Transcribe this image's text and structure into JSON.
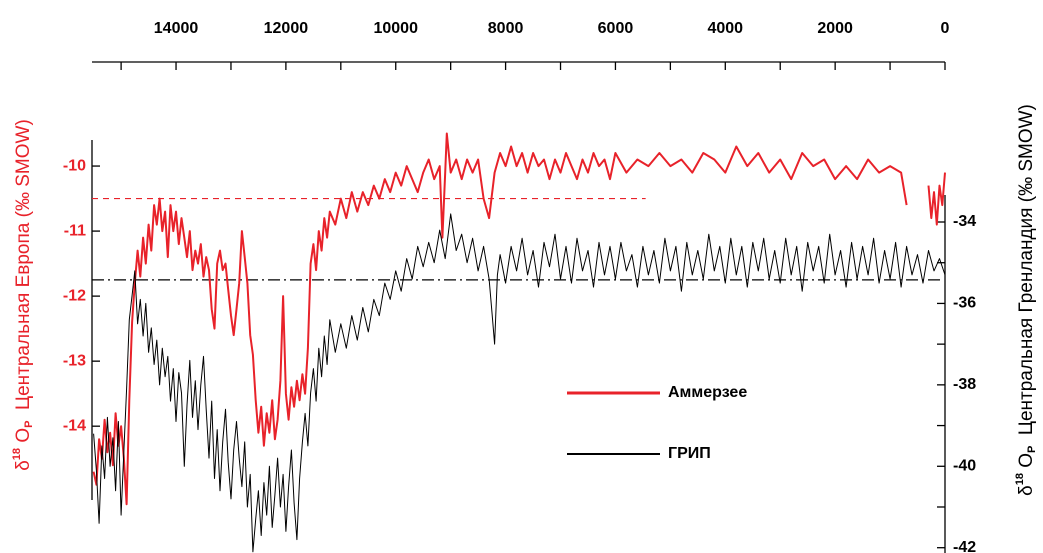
{
  "chart_data": {
    "type": "line",
    "ylabel": [
      "δ",
      "18",
      " O",
      "P",
      "  Центральная Европа (‰ SMOW)"
    ],
    "y2label": [
      "δ",
      "18",
      " O",
      "P",
      "  Центральная Гренландия (‰ SMOW)"
    ],
    "xlim": [
      15530,
      0
    ],
    "xticks": [
      14000,
      12000,
      10000,
      8000,
      6000,
      4000,
      2000,
      0
    ],
    "xminorticks": [
      15000,
      13000,
      11000,
      9000,
      7000,
      5000,
      3000,
      1000
    ],
    "ylim": [
      -15.95,
      -8.4
    ],
    "yticks": [
      -10,
      -11,
      -12,
      -13,
      -14
    ],
    "y2lim": [
      -42.13,
      -30.07
    ],
    "y2ticks": [
      -34,
      -36,
      -38,
      -40,
      -42
    ],
    "y2minorticks": [
      -35,
      -37,
      -39,
      -41
    ],
    "legend": "right",
    "reference_lines": [
      {
        "axis": "y",
        "value": -10.5,
        "x": [
          15530,
          5450
        ],
        "color": "#e8222a",
        "dash": "dashed"
      },
      {
        "axis": "y",
        "value": -11.75,
        "x": [
          15530,
          90
        ],
        "color": "#000000",
        "dash": "dashdot"
      }
    ],
    "series": [
      {
        "name": "Аммерзее",
        "color": "#e8222a",
        "axis": "y",
        "width": 2,
        "x": [
          15500,
          15450,
          15400,
          15350,
          15300,
          15250,
          15200,
          15150,
          15100,
          15050,
          15000,
          14950,
          14900,
          14850,
          14800,
          14750,
          14700,
          14650,
          14600,
          14550,
          14500,
          14450,
          14400,
          14350,
          14300,
          14250,
          14200,
          14150,
          14100,
          14050,
          14000,
          13950,
          13900,
          13850,
          13800,
          13750,
          13700,
          13650,
          13600,
          13550,
          13500,
          13450,
          13400,
          13350,
          13300,
          13250,
          13200,
          13150,
          13100,
          13050,
          13000,
          12950,
          12900,
          12850,
          12800,
          12750,
          12700,
          12650,
          12600,
          12550,
          12500,
          12450,
          12400,
          12350,
          12300,
          12250,
          12200,
          12150,
          12100,
          12050,
          12000,
          11950,
          11900,
          11850,
          11800,
          11750,
          11700,
          11650,
          11600,
          11550,
          11500,
          11450,
          11400,
          11350,
          11300,
          11250,
          11200,
          11100,
          11000,
          10900,
          10800,
          10700,
          10600,
          10500,
          10400,
          10300,
          10200,
          10100,
          10000,
          9900,
          9800,
          9700,
          9600,
          9500,
          9400,
          9300,
          9200,
          9150,
          9100,
          9070,
          9000,
          8900,
          8800,
          8700,
          8600,
          8500,
          8400,
          8300,
          8200,
          8100,
          8000,
          7900,
          7800,
          7700,
          7600,
          7500,
          7400,
          7300,
          7200,
          7100,
          7000,
          6900,
          6800,
          6700,
          6600,
          6500,
          6400,
          6300,
          6200,
          6100,
          6000,
          5800,
          5600,
          5400,
          5200,
          5000,
          4800,
          4600,
          4400,
          4200,
          4000,
          3800,
          3600,
          3400,
          3200,
          3000,
          2800,
          2600,
          2400,
          2200,
          2000,
          1800,
          1600,
          1400,
          1200,
          1000,
          800,
          700,
          600,
          300,
          250,
          200,
          150,
          100,
          50,
          0
        ],
        "values": [
          -14.7,
          -14.9,
          -14.2,
          -14.5,
          -13.9,
          -14.4,
          -14.1,
          -14.6,
          -13.8,
          -14.3,
          -14.0,
          -14.5,
          -15.2,
          -13.6,
          -12.4,
          -11.8,
          -11.3,
          -11.7,
          -11.1,
          -11.5,
          -10.9,
          -11.3,
          -10.6,
          -10.9,
          -10.5,
          -11.0,
          -10.7,
          -11.4,
          -10.6,
          -11.0,
          -10.7,
          -11.2,
          -10.8,
          -11.1,
          -11.4,
          -11.0,
          -11.6,
          -11.3,
          -11.5,
          -11.2,
          -11.7,
          -11.4,
          -11.6,
          -12.2,
          -12.5,
          -11.5,
          -11.3,
          -11.6,
          -11.5,
          -11.9,
          -12.3,
          -12.6,
          -12.2,
          -11.8,
          -11.0,
          -11.4,
          -11.8,
          -12.6,
          -12.9,
          -13.6,
          -14.1,
          -13.7,
          -14.3,
          -13.8,
          -14.1,
          -13.6,
          -14.2,
          -13.9,
          -13.3,
          -12.0,
          -13.5,
          -13.9,
          -13.4,
          -13.7,
          -13.3,
          -13.6,
          -13.2,
          -13.5,
          -12.8,
          -11.5,
          -11.2,
          -11.6,
          -11.0,
          -11.3,
          -10.8,
          -11.1,
          -10.7,
          -10.9,
          -10.5,
          -10.8,
          -10.4,
          -10.7,
          -10.4,
          -10.6,
          -10.3,
          -10.5,
          -10.2,
          -10.4,
          -10.1,
          -10.3,
          -10.0,
          -10.2,
          -10.4,
          -10.1,
          -9.9,
          -10.2,
          -10.0,
          -11.1,
          -10.1,
          -9.5,
          -10.1,
          -9.9,
          -10.2,
          -9.9,
          -10.1,
          -9.9,
          -10.5,
          -10.8,
          -10.1,
          -9.8,
          -10.0,
          -9.7,
          -10.0,
          -9.8,
          -10.1,
          -9.8,
          -10.0,
          -9.9,
          -10.2,
          -9.9,
          -10.1,
          -9.8,
          -10.0,
          -10.2,
          -9.9,
          -10.1,
          -9.8,
          -10.0,
          -9.9,
          -10.2,
          -9.8,
          -10.1,
          -9.9,
          -10.0,
          -9.8,
          -10.0,
          -9.9,
          -10.1,
          -9.8,
          -9.9,
          -10.1,
          -9.7,
          -10.0,
          -9.8,
          -10.1,
          -9.9,
          -10.2,
          -9.8,
          -10.0,
          -9.9,
          -10.2,
          -10.0,
          -10.2,
          -9.9,
          -10.1,
          -10.0,
          -10.1,
          -10.6,
          null,
          -10.3,
          -10.8,
          -10.4,
          -10.9,
          -10.3,
          -10.6,
          -10.1
        ]
      },
      {
        "name": "ГРИП",
        "color": "#000000",
        "axis": "y2",
        "width": 1,
        "x": [
          15500,
          15450,
          15400,
          15350,
          15300,
          15250,
          15200,
          15150,
          15100,
          15050,
          15000,
          14950,
          14900,
          14850,
          14800,
          14750,
          14700,
          14650,
          14600,
          14550,
          14500,
          14450,
          14400,
          14350,
          14300,
          14250,
          14200,
          14150,
          14100,
          14050,
          14000,
          13950,
          13900,
          13850,
          13800,
          13750,
          13700,
          13650,
          13600,
          13550,
          13500,
          13450,
          13400,
          13350,
          13300,
          13250,
          13200,
          13150,
          13100,
          13050,
          13000,
          12950,
          12900,
          12850,
          12800,
          12750,
          12700,
          12650,
          12600,
          12550,
          12500,
          12450,
          12400,
          12350,
          12300,
          12250,
          12200,
          12150,
          12100,
          12050,
          12000,
          11950,
          11900,
          11850,
          11800,
          11750,
          11700,
          11650,
          11600,
          11550,
          11500,
          11450,
          11400,
          11350,
          11300,
          11250,
          11200,
          11100,
          11000,
          10900,
          10800,
          10700,
          10600,
          10500,
          10400,
          10300,
          10200,
          10100,
          10000,
          9900,
          9800,
          9700,
          9600,
          9500,
          9400,
          9300,
          9200,
          9100,
          9000,
          8900,
          8800,
          8700,
          8600,
          8500,
          8400,
          8300,
          8250,
          8200,
          8150,
          8100,
          8000,
          7900,
          7800,
          7700,
          7600,
          7500,
          7400,
          7300,
          7200,
          7100,
          7000,
          6900,
          6800,
          6700,
          6600,
          6500,
          6400,
          6300,
          6200,
          6100,
          6000,
          5900,
          5800,
          5700,
          5600,
          5500,
          5400,
          5300,
          5200,
          5100,
          5000,
          4900,
          4800,
          4700,
          4600,
          4500,
          4400,
          4300,
          4200,
          4100,
          4000,
          3900,
          3800,
          3700,
          3600,
          3500,
          3400,
          3300,
          3200,
          3100,
          3000,
          2900,
          2800,
          2700,
          2600,
          2500,
          2400,
          2300,
          2200,
          2100,
          2000,
          1900,
          1800,
          1700,
          1600,
          1500,
          1400,
          1300,
          1200,
          1100,
          1000,
          900,
          800,
          700,
          600,
          500,
          400,
          300,
          200,
          100,
          0
        ],
        "values": [
          -39.2,
          -40.1,
          -41.4,
          -39.5,
          -40.3,
          -38.8,
          -40.0,
          -39.3,
          -40.6,
          -38.9,
          -41.2,
          -39.6,
          -38.1,
          -36.4,
          -35.8,
          -35.2,
          -36.5,
          -35.9,
          -36.8,
          -36.0,
          -37.2,
          -36.6,
          -37.5,
          -36.9,
          -38.0,
          -37.1,
          -37.8,
          -37.3,
          -38.4,
          -37.6,
          -38.9,
          -37.7,
          -38.2,
          -40.0,
          -38.5,
          -37.4,
          -38.8,
          -37.9,
          -39.1,
          -38.0,
          -37.3,
          -38.6,
          -39.8,
          -38.4,
          -40.3,
          -39.1,
          -40.6,
          -39.4,
          -38.6,
          -39.9,
          -40.8,
          -39.6,
          -38.9,
          -39.8,
          -40.5,
          -39.4,
          -41.0,
          -40.2,
          -42.1,
          -41.3,
          -40.6,
          -41.7,
          -40.4,
          -41.2,
          -40.0,
          -41.5,
          -40.7,
          -39.8,
          -41.0,
          -40.2,
          -41.6,
          -40.5,
          -39.6,
          -40.9,
          -41.8,
          -40.3,
          -39.4,
          -38.7,
          -39.5,
          -38.2,
          -37.6,
          -38.4,
          -37.1,
          -37.8,
          -36.8,
          -37.5,
          -36.4,
          -37.2,
          -36.5,
          -37.1,
          -36.3,
          -36.9,
          -36.1,
          -36.7,
          -35.9,
          -36.3,
          -35.5,
          -35.9,
          -35.2,
          -35.7,
          -34.9,
          -35.4,
          -34.6,
          -35.1,
          -34.5,
          -35.0,
          -34.2,
          -34.9,
          -33.8,
          -34.7,
          -34.3,
          -35.0,
          -34.4,
          -35.2,
          -34.6,
          -35.4,
          -36.2,
          -37.0,
          -35.3,
          -34.8,
          -35.5,
          -34.6,
          -35.2,
          -34.4,
          -35.3,
          -34.7,
          -35.6,
          -34.5,
          -35.1,
          -34.3,
          -35.4,
          -34.6,
          -35.5,
          -34.4,
          -35.2,
          -34.7,
          -35.6,
          -34.5,
          -35.3,
          -34.6,
          -35.4,
          -34.5,
          -35.2,
          -34.8,
          -35.6,
          -34.6,
          -35.3,
          -34.7,
          -35.5,
          -34.4,
          -35.2,
          -34.6,
          -35.7,
          -34.5,
          -35.3,
          -34.7,
          -35.4,
          -34.3,
          -35.2,
          -34.6,
          -35.5,
          -34.4,
          -35.3,
          -34.6,
          -35.6,
          -34.5,
          -35.2,
          -34.4,
          -35.4,
          -34.7,
          -35.5,
          -34.4,
          -35.3,
          -34.6,
          -35.7,
          -34.5,
          -35.2,
          -34.6,
          -35.5,
          -34.3,
          -35.3,
          -34.7,
          -35.6,
          -34.5,
          -35.4,
          -34.6,
          -35.3,
          -34.4,
          -35.5,
          -34.7,
          -35.4,
          -34.5,
          -35.6,
          -34.6,
          -35.3,
          -34.8,
          -35.5,
          -34.7,
          -35.2,
          -34.9,
          -35.3
        ]
      }
    ]
  }
}
